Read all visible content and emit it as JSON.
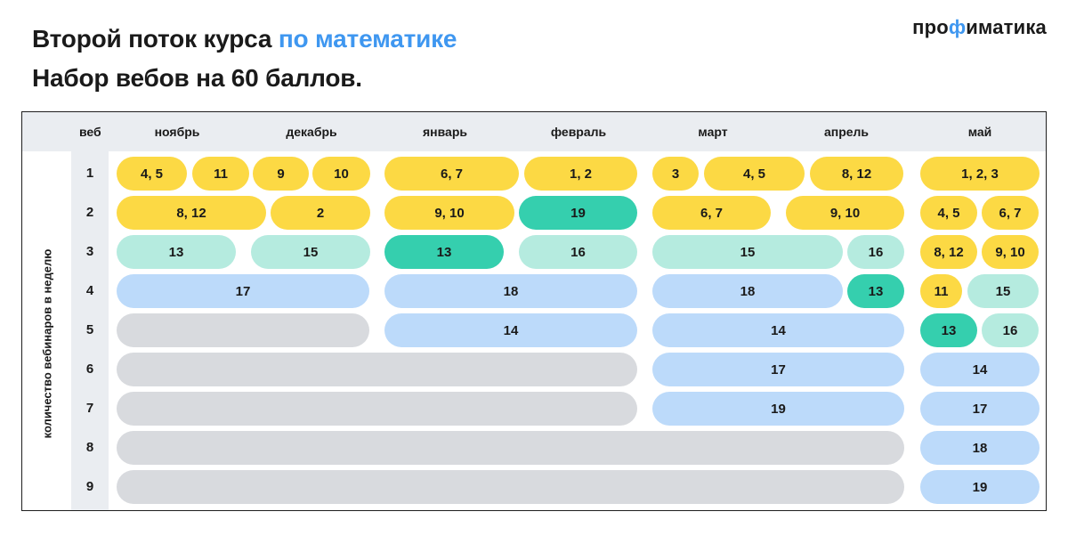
{
  "title": {
    "line1_main": "Второй поток курса ",
    "line1_accent": "по математике",
    "line2": "Набор вебов на 60 баллов."
  },
  "logo": {
    "before": "про",
    "phi": "ф",
    "after": "иматика"
  },
  "table": {
    "web_header": "веб",
    "months": [
      "ноябрь",
      "декабрь",
      "январь",
      "февраль",
      "март",
      "апрель",
      "май"
    ],
    "axis_label": "количество вебинаров в неделю",
    "rows": [
      "1",
      "2",
      "3",
      "4",
      "5",
      "6",
      "7",
      "8",
      "9"
    ]
  },
  "blocks": {
    "r1": [
      "4, 5",
      "11",
      "9",
      "10",
      "6, 7",
      "1, 2",
      "3",
      "4, 5",
      "8, 12",
      "1, 2, 3"
    ],
    "r2": [
      "8, 12",
      "2",
      "9, 10",
      "19",
      "6, 7",
      "9, 10",
      "4, 5",
      "6, 7"
    ],
    "r3": [
      "13",
      "15",
      "13",
      "16",
      "15",
      "16",
      "8, 12",
      "9, 10"
    ],
    "r4": [
      "17",
      "18",
      "18",
      "13",
      "11",
      "15"
    ],
    "r5": [
      "14",
      "14",
      "13",
      "16"
    ],
    "r6": [
      "17",
      "14"
    ],
    "r7": [
      "19",
      "17"
    ],
    "r8": [
      "18"
    ],
    "r9": [
      "19"
    ]
  },
  "colors": {
    "accent": "#3f97f0",
    "yellow": "#fcd944",
    "mint": "#b5ebdf",
    "teal": "#35cfae",
    "blue": "#bcdafa",
    "grey": "#d8dade",
    "header_bg": "#eaedf1"
  }
}
